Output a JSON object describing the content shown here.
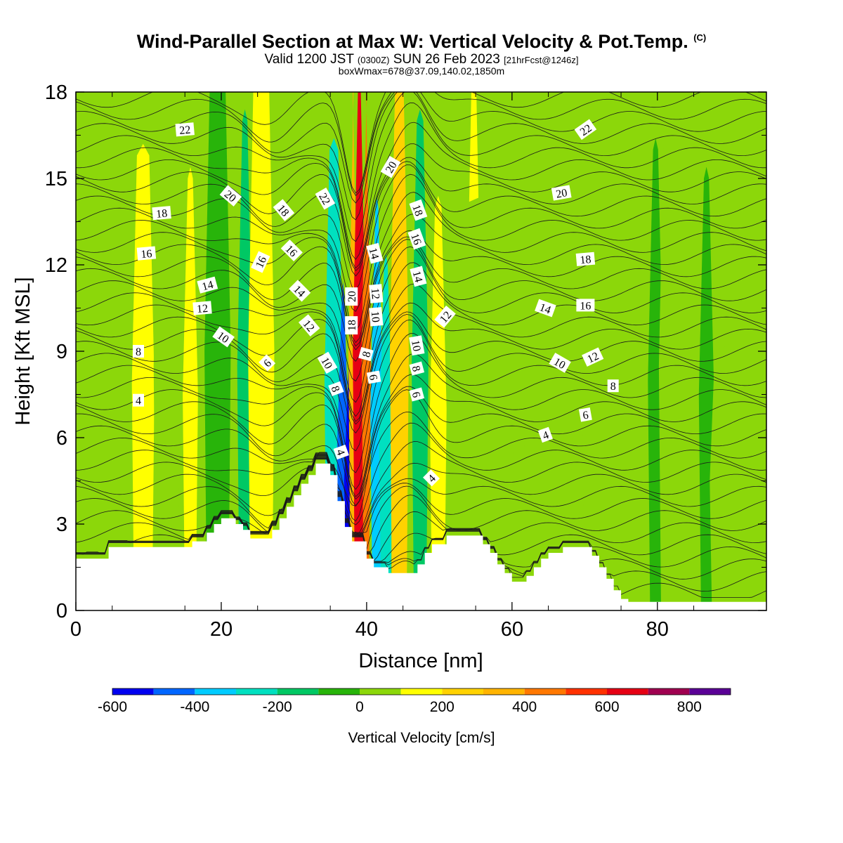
{
  "header": {
    "title": "Wind-Parallel Section at Max W: Vertical Velocity & Pot.Temp.",
    "title_mark": "(C)",
    "subtitle_a": "Valid 1200 JST",
    "subtitle_b": "(0300Z)",
    "subtitle_c": "SUN 26 Feb 2023",
    "subtitle_d": "[21hrFcst@1246z]",
    "subtitle_line3": "boxWmax=678@37.09,140.02,1850m"
  },
  "chart_data": {
    "type": "heatmap",
    "xlabel": "Distance [nm]",
    "ylabel": "Height [Kft MSL]",
    "xlim": [
      0,
      95
    ],
    "ylim": [
      0,
      18
    ],
    "xticks": [
      "0",
      "20",
      "40",
      "60",
      "80"
    ],
    "yticks": [
      "0",
      "3",
      "6",
      "9",
      "12",
      "15",
      "18"
    ],
    "colorbar": {
      "label": "Vertical Velocity [cm/s]",
      "bounds": [
        -600,
        -500,
        -400,
        -300,
        -200,
        -100,
        0,
        100,
        200,
        300,
        400,
        500,
        600,
        700,
        800,
        900
      ],
      "colors": [
        "#0000f0",
        "#0066ff",
        "#00ccff",
        "#00e0c0",
        "#00c864",
        "#28b40a",
        "#8cd70a",
        "#ffff00",
        "#ffd200",
        "#ffb400",
        "#ff7800",
        "#ff3200",
        "#e60014",
        "#a00050",
        "#5a0096"
      ],
      "ticks": [
        "-600",
        "-400",
        "-200",
        "0",
        "200",
        "400",
        "600",
        "800"
      ]
    },
    "terrain": [
      [
        0,
        1.8
      ],
      [
        4.5,
        1.8
      ],
      [
        4.5,
        2.2
      ],
      [
        16,
        2.2
      ],
      [
        16,
        2.4
      ],
      [
        18,
        2.4
      ],
      [
        18,
        2.7
      ],
      [
        19,
        2.7
      ],
      [
        19,
        3.0
      ],
      [
        20,
        3.0
      ],
      [
        20,
        3.2
      ],
      [
        22,
        3.2
      ],
      [
        22,
        3.0
      ],
      [
        23,
        3.0
      ],
      [
        23,
        2.8
      ],
      [
        24,
        2.8
      ],
      [
        24,
        2.5
      ],
      [
        27,
        2.5
      ],
      [
        27,
        2.8
      ],
      [
        28,
        2.8
      ],
      [
        28,
        3.2
      ],
      [
        29,
        3.2
      ],
      [
        29,
        3.6
      ],
      [
        30,
        3.6
      ],
      [
        30,
        4.0
      ],
      [
        31,
        4.0
      ],
      [
        31,
        4.4
      ],
      [
        32,
        4.4
      ],
      [
        32,
        4.7
      ],
      [
        33,
        4.7
      ],
      [
        33,
        5.1
      ],
      [
        35,
        5.1
      ],
      [
        35,
        4.7
      ],
      [
        36,
        4.7
      ],
      [
        36,
        3.8
      ],
      [
        37,
        3.8
      ],
      [
        37,
        2.9
      ],
      [
        38,
        2.9
      ],
      [
        38,
        2.4
      ],
      [
        40,
        2.4
      ],
      [
        40,
        1.8
      ],
      [
        41,
        1.8
      ],
      [
        41,
        1.5
      ],
      [
        43,
        1.5
      ],
      [
        43,
        1.3
      ],
      [
        47,
        1.3
      ],
      [
        47,
        1.6
      ],
      [
        48,
        1.6
      ],
      [
        48,
        2.0
      ],
      [
        49,
        2.0
      ],
      [
        49,
        2.3
      ],
      [
        51,
        2.3
      ],
      [
        51,
        2.6
      ],
      [
        53,
        2.6
      ],
      [
        53,
        2.6
      ],
      [
        56,
        2.6
      ],
      [
        56,
        2.3
      ],
      [
        57,
        2.3
      ],
      [
        57,
        2.0
      ],
      [
        58,
        2.0
      ],
      [
        58,
        1.6
      ],
      [
        59,
        1.6
      ],
      [
        59,
        1.3
      ],
      [
        60,
        1.3
      ],
      [
        60,
        1.0
      ],
      [
        62,
        1.0
      ],
      [
        62,
        1.2
      ],
      [
        63,
        1.2
      ],
      [
        63,
        1.5
      ],
      [
        64,
        1.5
      ],
      [
        64,
        1.8
      ],
      [
        65,
        1.8
      ],
      [
        65,
        2.0
      ],
      [
        67,
        2.0
      ],
      [
        67,
        2.2
      ],
      [
        71,
        2.2
      ],
      [
        71,
        1.9
      ],
      [
        72,
        1.9
      ],
      [
        72,
        1.5
      ],
      [
        73,
        1.5
      ],
      [
        73,
        1.1
      ],
      [
        74,
        1.1
      ],
      [
        74,
        0.7
      ],
      [
        75,
        0.7
      ],
      [
        75,
        0.4
      ],
      [
        76,
        0.4
      ],
      [
        76,
        0.3
      ],
      [
        95,
        0.3
      ]
    ],
    "vertical_velocity_bands": [
      {
        "x": [
          3,
          9.8
        ],
        "w": 50,
        "ytop": 11
      },
      {
        "x": [
          8,
          10.5
        ],
        "w": 120,
        "ytop": 15.8
      },
      {
        "x": [
          11,
          14
        ],
        "w": 50,
        "ytop": 17
      },
      {
        "x": [
          15,
          16.5
        ],
        "w": 120,
        "ytop": 15
      },
      {
        "x": [
          18,
          21
        ],
        "w": -20,
        "ytop": 18
      },
      {
        "x": [
          22.5,
          24
        ],
        "w": -120,
        "ytop": 17
      },
      {
        "x": [
          24,
          27
        ],
        "w": 170,
        "ytop": 18
      },
      {
        "x": [
          28,
          33.5
        ],
        "w": 40,
        "ytop": 18
      },
      {
        "x": [
          34.5,
          36.5
        ],
        "w": -250,
        "ytop": 16
      },
      {
        "x": [
          36.2,
          37.3
        ],
        "w": -450,
        "ytop": 11
      },
      {
        "x": [
          37.2,
          37.9
        ],
        "w": -580,
        "ytop": 9
      },
      {
        "x": [
          37.8,
          38.5
        ],
        "w": 330,
        "ytop": 18
      },
      {
        "x": [
          38.4,
          39.6
        ],
        "w": 650,
        "ytop": 18
      },
      {
        "x": [
          39.6,
          40.3
        ],
        "w": 420,
        "ytop": 18
      },
      {
        "x": [
          40.8,
          42
        ],
        "w": -350,
        "ytop": 14
      },
      {
        "x": [
          42,
          43.3
        ],
        "w": -230,
        "ytop": 12
      },
      {
        "x": [
          43.5,
          45.5
        ],
        "w": 260,
        "ytop": 18
      },
      {
        "x": [
          46.5,
          48.2
        ],
        "w": -200,
        "ytop": 17
      },
      {
        "x": [
          49,
          50.7
        ],
        "w": 180,
        "ytop": 14
      },
      {
        "x": [
          54,
          55.5
        ],
        "w": 180,
        "ytop": 18
      },
      {
        "x": [
          52,
          60
        ],
        "w": 60,
        "ytop": 14
      },
      {
        "x": [
          62,
          68
        ],
        "w": 60,
        "ytop": 13
      },
      {
        "x": [
          70,
          79
        ],
        "w": 60,
        "ytop": 15
      },
      {
        "x": [
          79,
          80.5
        ],
        "w": -20,
        "ytop": 16
      },
      {
        "x": [
          80.5,
          86
        ],
        "w": 60,
        "ytop": 17
      },
      {
        "x": [
          86,
          87.5
        ],
        "w": -20,
        "ytop": 15
      },
      {
        "x": [
          87.5,
          95
        ],
        "w": 60,
        "ytop": 9
      }
    ],
    "isentrope_labels": [
      {
        "t": "22",
        "x": 15.0,
        "y": 16.7,
        "r": -5
      },
      {
        "t": "18",
        "x": 11.8,
        "y": 13.8,
        "r": -5
      },
      {
        "t": "16",
        "x": 9.7,
        "y": 12.4,
        "r": -5
      },
      {
        "t": "14",
        "x": 18.1,
        "y": 11.3,
        "r": -15
      },
      {
        "t": "12",
        "x": 17.4,
        "y": 10.5,
        "r": -5
      },
      {
        "t": "10",
        "x": 20.3,
        "y": 9.5,
        "r": 35
      },
      {
        "t": "8",
        "x": 8.6,
        "y": 9.0,
        "r": 0
      },
      {
        "t": "4",
        "x": 8.6,
        "y": 7.3,
        "r": 0
      },
      {
        "t": "20",
        "x": 21.3,
        "y": 14.4,
        "r": 40
      },
      {
        "t": "16",
        "x": 25.4,
        "y": 12.1,
        "r": -65
      },
      {
        "t": "6",
        "x": 26.3,
        "y": 8.6,
        "r": -45
      },
      {
        "t": "18",
        "x": 28.6,
        "y": 13.9,
        "r": 50
      },
      {
        "t": "16",
        "x": 29.7,
        "y": 12.5,
        "r": 45
      },
      {
        "t": "14",
        "x": 30.8,
        "y": 11.1,
        "r": 45
      },
      {
        "t": "12",
        "x": 32.1,
        "y": 9.9,
        "r": 50
      },
      {
        "t": "22",
        "x": 34.3,
        "y": 14.3,
        "r": 60
      },
      {
        "t": "10",
        "x": 34.6,
        "y": 8.6,
        "r": 60
      },
      {
        "t": "8",
        "x": 35.8,
        "y": 7.7,
        "r": 70
      },
      {
        "t": "4",
        "x": 36.5,
        "y": 5.5,
        "r": 70
      },
      {
        "t": "20",
        "x": 37.9,
        "y": 10.9,
        "r": -90
      },
      {
        "t": "18",
        "x": 37.9,
        "y": 9.9,
        "r": -90
      },
      {
        "t": "8",
        "x": 39.9,
        "y": 8.9,
        "r": -75
      },
      {
        "t": "14",
        "x": 41.1,
        "y": 12.4,
        "r": 75
      },
      {
        "t": "12",
        "x": 41.3,
        "y": 11.0,
        "r": 85
      },
      {
        "t": "10",
        "x": 41.3,
        "y": 10.2,
        "r": 85
      },
      {
        "t": "6",
        "x": 41.0,
        "y": 8.1,
        "r": 80
      },
      {
        "t": "20",
        "x": 43.3,
        "y": 15.4,
        "r": -60
      },
      {
        "t": "18",
        "x": 47.1,
        "y": 13.9,
        "r": 70
      },
      {
        "t": "16",
        "x": 46.9,
        "y": 12.9,
        "r": 70
      },
      {
        "t": "14",
        "x": 47.1,
        "y": 11.6,
        "r": 75
      },
      {
        "t": "10",
        "x": 46.9,
        "y": 9.2,
        "r": 80
      },
      {
        "t": "8",
        "x": 46.9,
        "y": 8.4,
        "r": 75
      },
      {
        "t": "6",
        "x": 46.9,
        "y": 7.5,
        "r": 75
      },
      {
        "t": "12",
        "x": 50.8,
        "y": 10.2,
        "r": -50
      },
      {
        "t": "4",
        "x": 48.9,
        "y": 4.6,
        "r": -45
      },
      {
        "t": "22",
        "x": 70.1,
        "y": 16.7,
        "r": -35
      },
      {
        "t": "20",
        "x": 66.8,
        "y": 14.5,
        "r": -10
      },
      {
        "t": "18",
        "x": 70.1,
        "y": 12.2,
        "r": -5
      },
      {
        "t": "16",
        "x": 70.1,
        "y": 10.6,
        "r": 0
      },
      {
        "t": "14",
        "x": 64.6,
        "y": 10.5,
        "r": 20
      },
      {
        "t": "12",
        "x": 71.1,
        "y": 8.8,
        "r": -25
      },
      {
        "t": "10",
        "x": 66.6,
        "y": 8.6,
        "r": 30
      },
      {
        "t": "8",
        "x": 73.9,
        "y": 7.8,
        "r": 0
      },
      {
        "t": "6",
        "x": 70.1,
        "y": 6.8,
        "r": -10
      },
      {
        "t": "4",
        "x": 64.6,
        "y": 6.1,
        "r": -20
      }
    ]
  }
}
